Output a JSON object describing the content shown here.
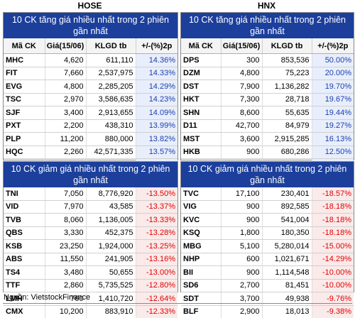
{
  "hose": {
    "title": "HOSE",
    "gainers": {
      "banner": "10 CK tăng giá nhiều nhất trong 2 phiên gần nhất",
      "headers": [
        "Mã CK",
        "Giá(15/06)",
        "KLGD tb",
        "+/-(%)2p"
      ],
      "rows": [
        [
          "MHC",
          "4,620",
          "611,110",
          "14.36%"
        ],
        [
          "FIT",
          "7,660",
          "2,537,975",
          "14.33%"
        ],
        [
          "EVG",
          "4,800",
          "2,285,205",
          "14.29%"
        ],
        [
          "TSC",
          "2,970",
          "3,586,635",
          "14.23%"
        ],
        [
          "SJF",
          "3,400",
          "2,913,655",
          "14.09%"
        ],
        [
          "PXT",
          "2,200",
          "438,310",
          "13.99%"
        ],
        [
          "PLP",
          "11,200",
          "880,000",
          "13.82%"
        ],
        [
          "HQC",
          "2,260",
          "42,571,335",
          "13.57%"
        ],
        [
          "ATG",
          "840",
          "244,425",
          "13.51%"
        ],
        [
          "TGG",
          "1,360",
          "934,285",
          "13.33%"
        ]
      ]
    },
    "losers": {
      "banner": "10 CK giảm giá nhiều nhất trong 2 phiên gần nhất",
      "rows": [
        [
          "TNI",
          "7,050",
          "8,776,920",
          "-13.50%"
        ],
        [
          "VID",
          "7,970",
          "43,585",
          "-13.37%"
        ],
        [
          "TVB",
          "8,060",
          "1,136,005",
          "-13.33%"
        ],
        [
          "QBS",
          "3,330",
          "452,375",
          "-13.28%"
        ],
        [
          "KSB",
          "23,250",
          "1,924,000",
          "-13.25%"
        ],
        [
          "ABS",
          "11,550",
          "241,905",
          "-13.16%"
        ],
        [
          "TS4",
          "3,480",
          "50,655",
          "-13.00%"
        ],
        [
          "TTF",
          "2,860",
          "5,735,525",
          "-12.80%"
        ],
        [
          "LMH",
          "760",
          "1,410,720",
          "-12.64%"
        ],
        [
          "CMX",
          "10,200",
          "883,910",
          "-12.33%"
        ]
      ]
    }
  },
  "hnx": {
    "title": "HNX",
    "gainers": {
      "banner": "10 CK tăng giá nhiều nhất trong 2 phiên gần nhất",
      "headers": [
        "Mã CK",
        "Giá(15/06)",
        "KLGD tb",
        "+/-(%)2p"
      ],
      "rows": [
        [
          "DPS",
          "300",
          "853,536",
          "50.00%"
        ],
        [
          "DZM",
          "4,800",
          "75,223",
          "20.00%"
        ],
        [
          "DST",
          "7,900",
          "1,136,282",
          "19.70%"
        ],
        [
          "HKT",
          "7,300",
          "28,718",
          "19.67%"
        ],
        [
          "SHN",
          "8,600",
          "55,635",
          "19.44%"
        ],
        [
          "D11",
          "42,700",
          "84,979",
          "19.27%"
        ],
        [
          "MST",
          "3,600",
          "2,915,285",
          "16.13%"
        ],
        [
          "HKB",
          "900",
          "680,286",
          "12.50%"
        ],
        [
          "SJC",
          "1,000",
          "14,992",
          "11.11%"
        ],
        [
          "S99",
          "13,100",
          "653,073",
          "11.02%"
        ]
      ]
    },
    "losers": {
      "banner": "10 CK giảm giá nhiều nhất trong 2 phiên gần nhất",
      "rows": [
        [
          "TVC",
          "17,100",
          "230,401",
          "-18.57%"
        ],
        [
          "VIG",
          "900",
          "892,585",
          "-18.18%"
        ],
        [
          "KVC",
          "900",
          "541,004",
          "-18.18%"
        ],
        [
          "KSQ",
          "1,800",
          "180,350",
          "-18.18%"
        ],
        [
          "MBG",
          "5,100",
          "5,280,014",
          "-15.00%"
        ],
        [
          "NHP",
          "600",
          "1,021,671",
          "-14.29%"
        ],
        [
          "BII",
          "900",
          "1,114,548",
          "-10.00%"
        ],
        [
          "SD6",
          "2,700",
          "81,451",
          "-10.00%"
        ],
        [
          "SDT",
          "3,700",
          "49,938",
          "-9.76%"
        ],
        [
          "BLF",
          "2,900",
          "18,013",
          "-9.38%"
        ]
      ]
    }
  },
  "source": "Nguồn: VietstockFinance",
  "colors": {
    "banner": "#1c3f9c",
    "gain": "#1c3fb0",
    "loss": "#e00000"
  }
}
